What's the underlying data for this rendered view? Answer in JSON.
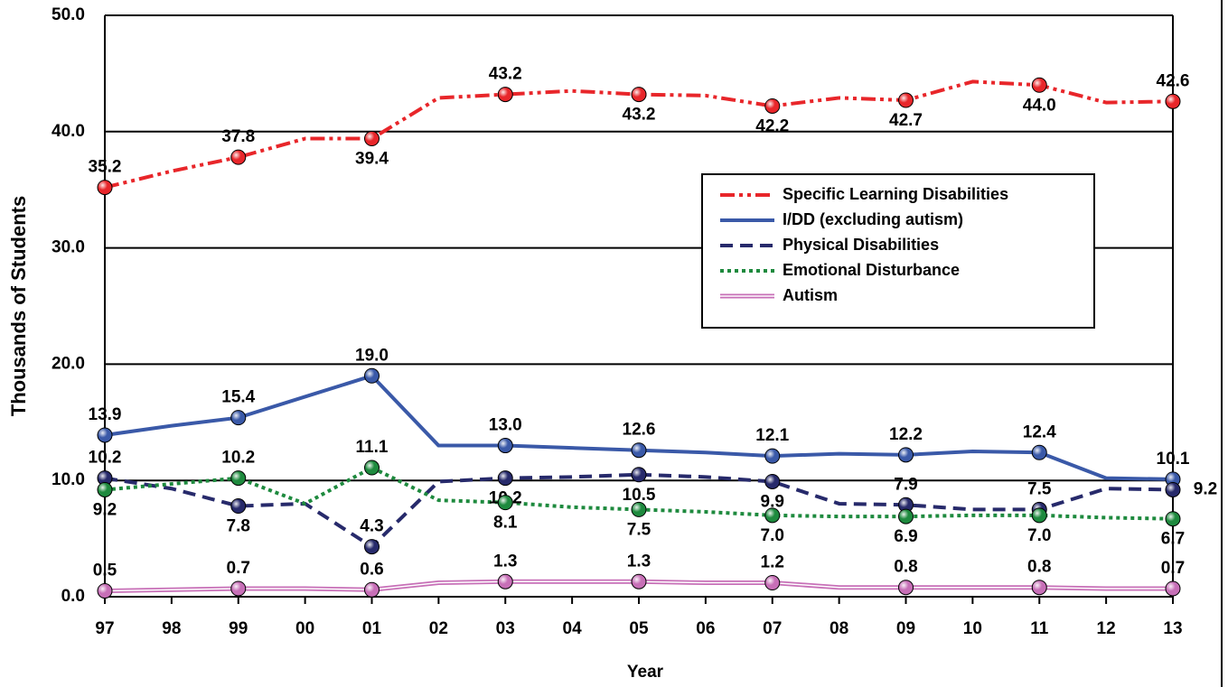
{
  "chart_data": {
    "type": "line",
    "x_label": "Year",
    "y_label": "Thousands of Students",
    "categories": [
      "97",
      "98",
      "99",
      "00",
      "01",
      "02",
      "03",
      "04",
      "05",
      "06",
      "07",
      "08",
      "09",
      "10",
      "11",
      "12",
      "13"
    ],
    "ylim": [
      0,
      50
    ],
    "yticks": [
      {
        "value": 0,
        "label": "0.0"
      },
      {
        "value": 10,
        "label": "10.0"
      },
      {
        "value": 20,
        "label": "20.0"
      },
      {
        "value": 30,
        "label": "30.0"
      },
      {
        "value": 40,
        "label": "40.0"
      },
      {
        "value": 50,
        "label": "50.0"
      }
    ],
    "grid": true,
    "legend": "upper right",
    "series": [
      {
        "name": "Specific Learning Disabilities",
        "color": "#e8262a",
        "style": "dashdotdot",
        "values": [
          35.2,
          36.6,
          37.8,
          39.4,
          39.4,
          42.9,
          43.2,
          43.5,
          43.2,
          43.1,
          42.2,
          42.9,
          42.7,
          44.3,
          44.0,
          42.5,
          42.6
        ],
        "value_labels": [
          "35.2",
          null,
          "37.8",
          null,
          "39.4",
          null,
          "43.2",
          null,
          "43.2",
          null,
          "42.2",
          null,
          "42.7",
          null,
          "44.0",
          null,
          "42.6"
        ]
      },
      {
        "name": "I/DD (excluding autism)",
        "color": "#3a59a8",
        "style": "solid",
        "values": [
          13.9,
          14.7,
          15.4,
          17.2,
          19.0,
          13.0,
          13.0,
          12.8,
          12.6,
          12.4,
          12.1,
          12.3,
          12.2,
          12.5,
          12.4,
          10.2,
          10.1
        ],
        "value_labels": [
          "13.9",
          null,
          "15.4",
          null,
          "19.0",
          null,
          "13.0",
          null,
          "12.6",
          null,
          "12.1",
          null,
          "12.2",
          null,
          "12.4",
          null,
          "10.1"
        ]
      },
      {
        "name": "Physical Disabilities",
        "color": "#272a6b",
        "style": "dashed",
        "values": [
          10.2,
          9.3,
          7.8,
          8.0,
          4.3,
          9.9,
          10.2,
          10.3,
          10.5,
          10.3,
          9.9,
          8.0,
          7.9,
          7.5,
          7.5,
          9.3,
          9.2
        ],
        "value_labels": [
          "10.2",
          null,
          "7.8",
          null,
          "4.3",
          null,
          "10.2",
          null,
          "10.5",
          null,
          "9.9",
          null,
          "7.9",
          null,
          "7.5",
          null,
          "9.2"
        ]
      },
      {
        "name": "Emotional Disturbance",
        "color": "#1e8a3e",
        "style": "dotted",
        "values": [
          9.2,
          9.7,
          10.2,
          8.0,
          11.1,
          8.3,
          8.1,
          7.7,
          7.5,
          7.3,
          7.0,
          6.9,
          6.9,
          7.0,
          7.0,
          6.8,
          6.7
        ],
        "value_labels": [
          "9.2",
          null,
          "10.2",
          null,
          "11.1",
          null,
          "8.1",
          null,
          "7.5",
          null,
          "7.0",
          null,
          "6.9",
          null,
          "7.0",
          null,
          "6.7"
        ]
      },
      {
        "name": "Autism",
        "color": "#c76fb7",
        "style": "double",
        "values": [
          0.5,
          0.6,
          0.7,
          0.7,
          0.6,
          1.2,
          1.3,
          1.3,
          1.3,
          1.2,
          1.2,
          0.8,
          0.8,
          0.8,
          0.8,
          0.7,
          0.7
        ],
        "value_labels": [
          "0.5",
          null,
          "0.7",
          null,
          "0.6",
          null,
          "1.3",
          null,
          "1.3",
          null,
          "1.2",
          null,
          "0.8",
          null,
          "0.8",
          null,
          "0.7"
        ]
      }
    ]
  }
}
